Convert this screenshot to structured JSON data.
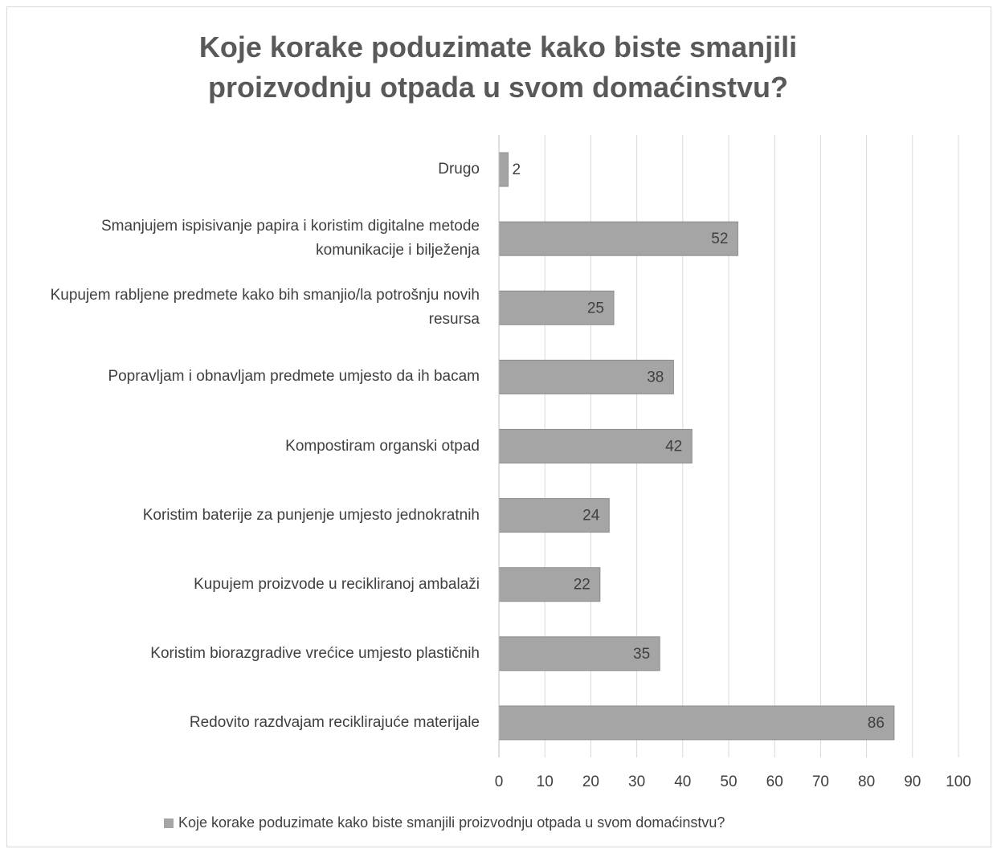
{
  "chart_data": {
    "type": "bar",
    "orientation": "horizontal",
    "title": "Koje korake poduzimate kako biste smanjili proizvodnju otpada u svom domaćinstvu?",
    "categories": [
      "Drugo",
      "Smanjujem ispisivanje papira i koristim digitalne metode komunikacije i bilježenja",
      "Kupujem rabljene predmete kako bih smanjio/la potrošnju novih resursa",
      "Popravljam i obnavljam predmete umjesto da ih bacam",
      "Kompostiram organski otpad",
      "Koristim baterije za punjenje umjesto jednokratnih",
      "Kupujem proizvode u recikliranoj ambalaži",
      "Koristim biorazgradive vrećice umjesto plastičnih",
      "Redovito razdvajam reciklirajuće materijale"
    ],
    "series": [
      {
        "name": "Koje korake poduzimate kako biste smanjili proizvodnju otpada u svom domaćinstvu?",
        "color": "#a5a5a5",
        "values": [
          2,
          52,
          25,
          38,
          42,
          24,
          22,
          35,
          86
        ]
      }
    ],
    "xlim": [
      0,
      100
    ],
    "xticks": [
      0,
      10,
      20,
      30,
      40,
      50,
      60,
      70,
      80,
      90,
      100
    ],
    "grid": true,
    "legend": "bottom"
  }
}
